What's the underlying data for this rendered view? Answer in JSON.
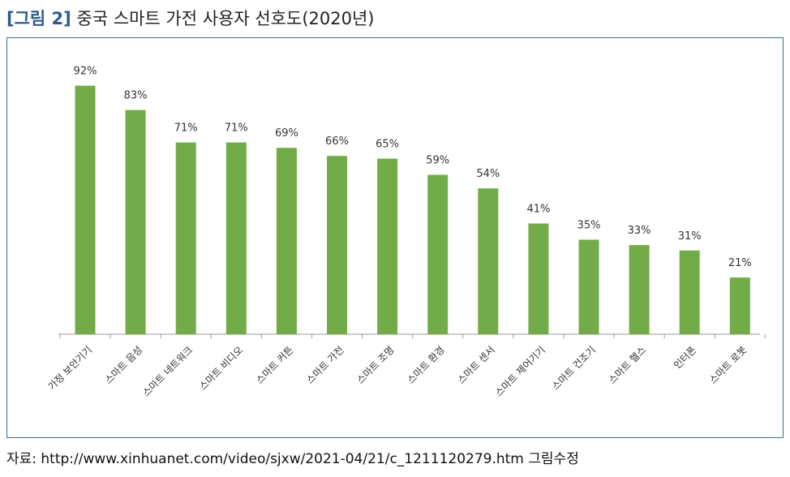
{
  "figure": {
    "tag": "[그림 2]",
    "title": "중국 스마트 가전 사용자 선호도(2020년)"
  },
  "source": {
    "text": "자료: http://www.xinhuanet.com/video/sjxw/2021-04/21/c_1211120279.htm 그림수정"
  },
  "colors": {
    "bar": "#72ac48",
    "axis": "#9a9a9a",
    "frame": "#3b6f8f",
    "tag": "#2e5a8c"
  },
  "chart_data": {
    "type": "bar",
    "title": "",
    "xlabel": "",
    "ylabel": "",
    "ylim": [
      0,
      100
    ],
    "grid": false,
    "legend": "none",
    "categories": [
      "가정 보안기기",
      "스마트 음성",
      "스마트 네트워크",
      "스마트 비디오",
      "스마트 커튼",
      "스마트 가전",
      "스마트 조명",
      "스마트 환경",
      "스마트 센서",
      "스마트 제어기기",
      "스마트 건조기",
      "스마트 헬스",
      "인터폰",
      "스마트 로봇"
    ],
    "values": [
      92,
      83,
      71,
      71,
      69,
      66,
      65,
      59,
      54,
      41,
      35,
      33,
      31,
      21
    ],
    "data_labels": [
      "92%",
      "83%",
      "71%",
      "71%",
      "69%",
      "66%",
      "65%",
      "59%",
      "54%",
      "41%",
      "35%",
      "33%",
      "31%",
      "21%"
    ]
  }
}
